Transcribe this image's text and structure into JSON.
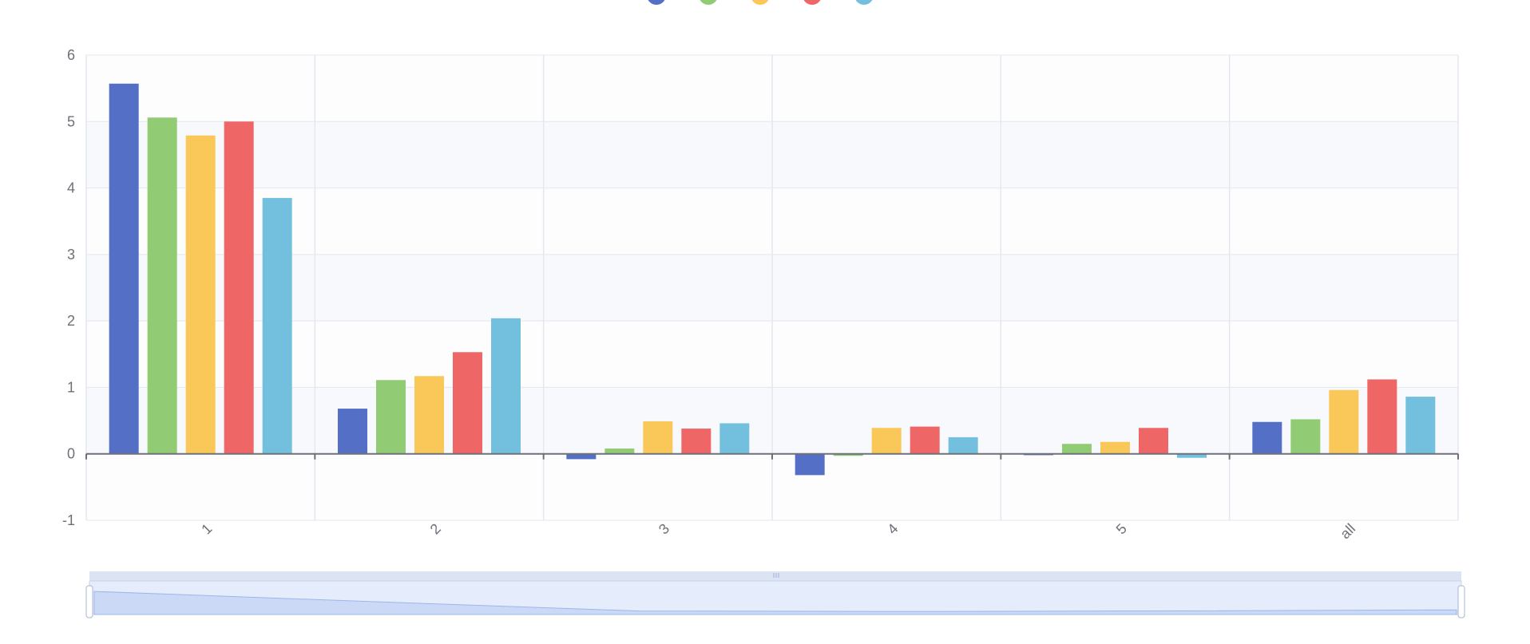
{
  "chart_data": {
    "type": "bar",
    "categories": [
      "1",
      "2",
      "3",
      "4",
      "5",
      "all"
    ],
    "ylim": [
      -1,
      6
    ],
    "yticks": [
      "6",
      "5",
      "4",
      "3",
      "2",
      "1",
      "0",
      "-1"
    ],
    "grid": true,
    "legend_placement": "top-center",
    "series": [
      {
        "color": "#5470c6",
        "values": [
          5.57,
          0.68,
          -0.08,
          -0.32,
          -0.02,
          0.48
        ]
      },
      {
        "color": "#91cc75",
        "values": [
          5.06,
          1.11,
          0.08,
          -0.03,
          0.15,
          0.52
        ]
      },
      {
        "color": "#fac858",
        "values": [
          4.79,
          1.17,
          0.49,
          0.39,
          0.18,
          0.96
        ]
      },
      {
        "color": "#ee6666",
        "values": [
          5.0,
          1.53,
          0.38,
          0.41,
          0.39,
          1.12
        ]
      },
      {
        "color": "#73c0de",
        "values": [
          3.85,
          2.04,
          0.46,
          0.25,
          -0.06,
          0.86
        ]
      }
    ]
  },
  "data_zoom": {
    "range_start_percent": 0,
    "range_end_percent": 100,
    "handle_icon": "grip-lines-icon"
  }
}
